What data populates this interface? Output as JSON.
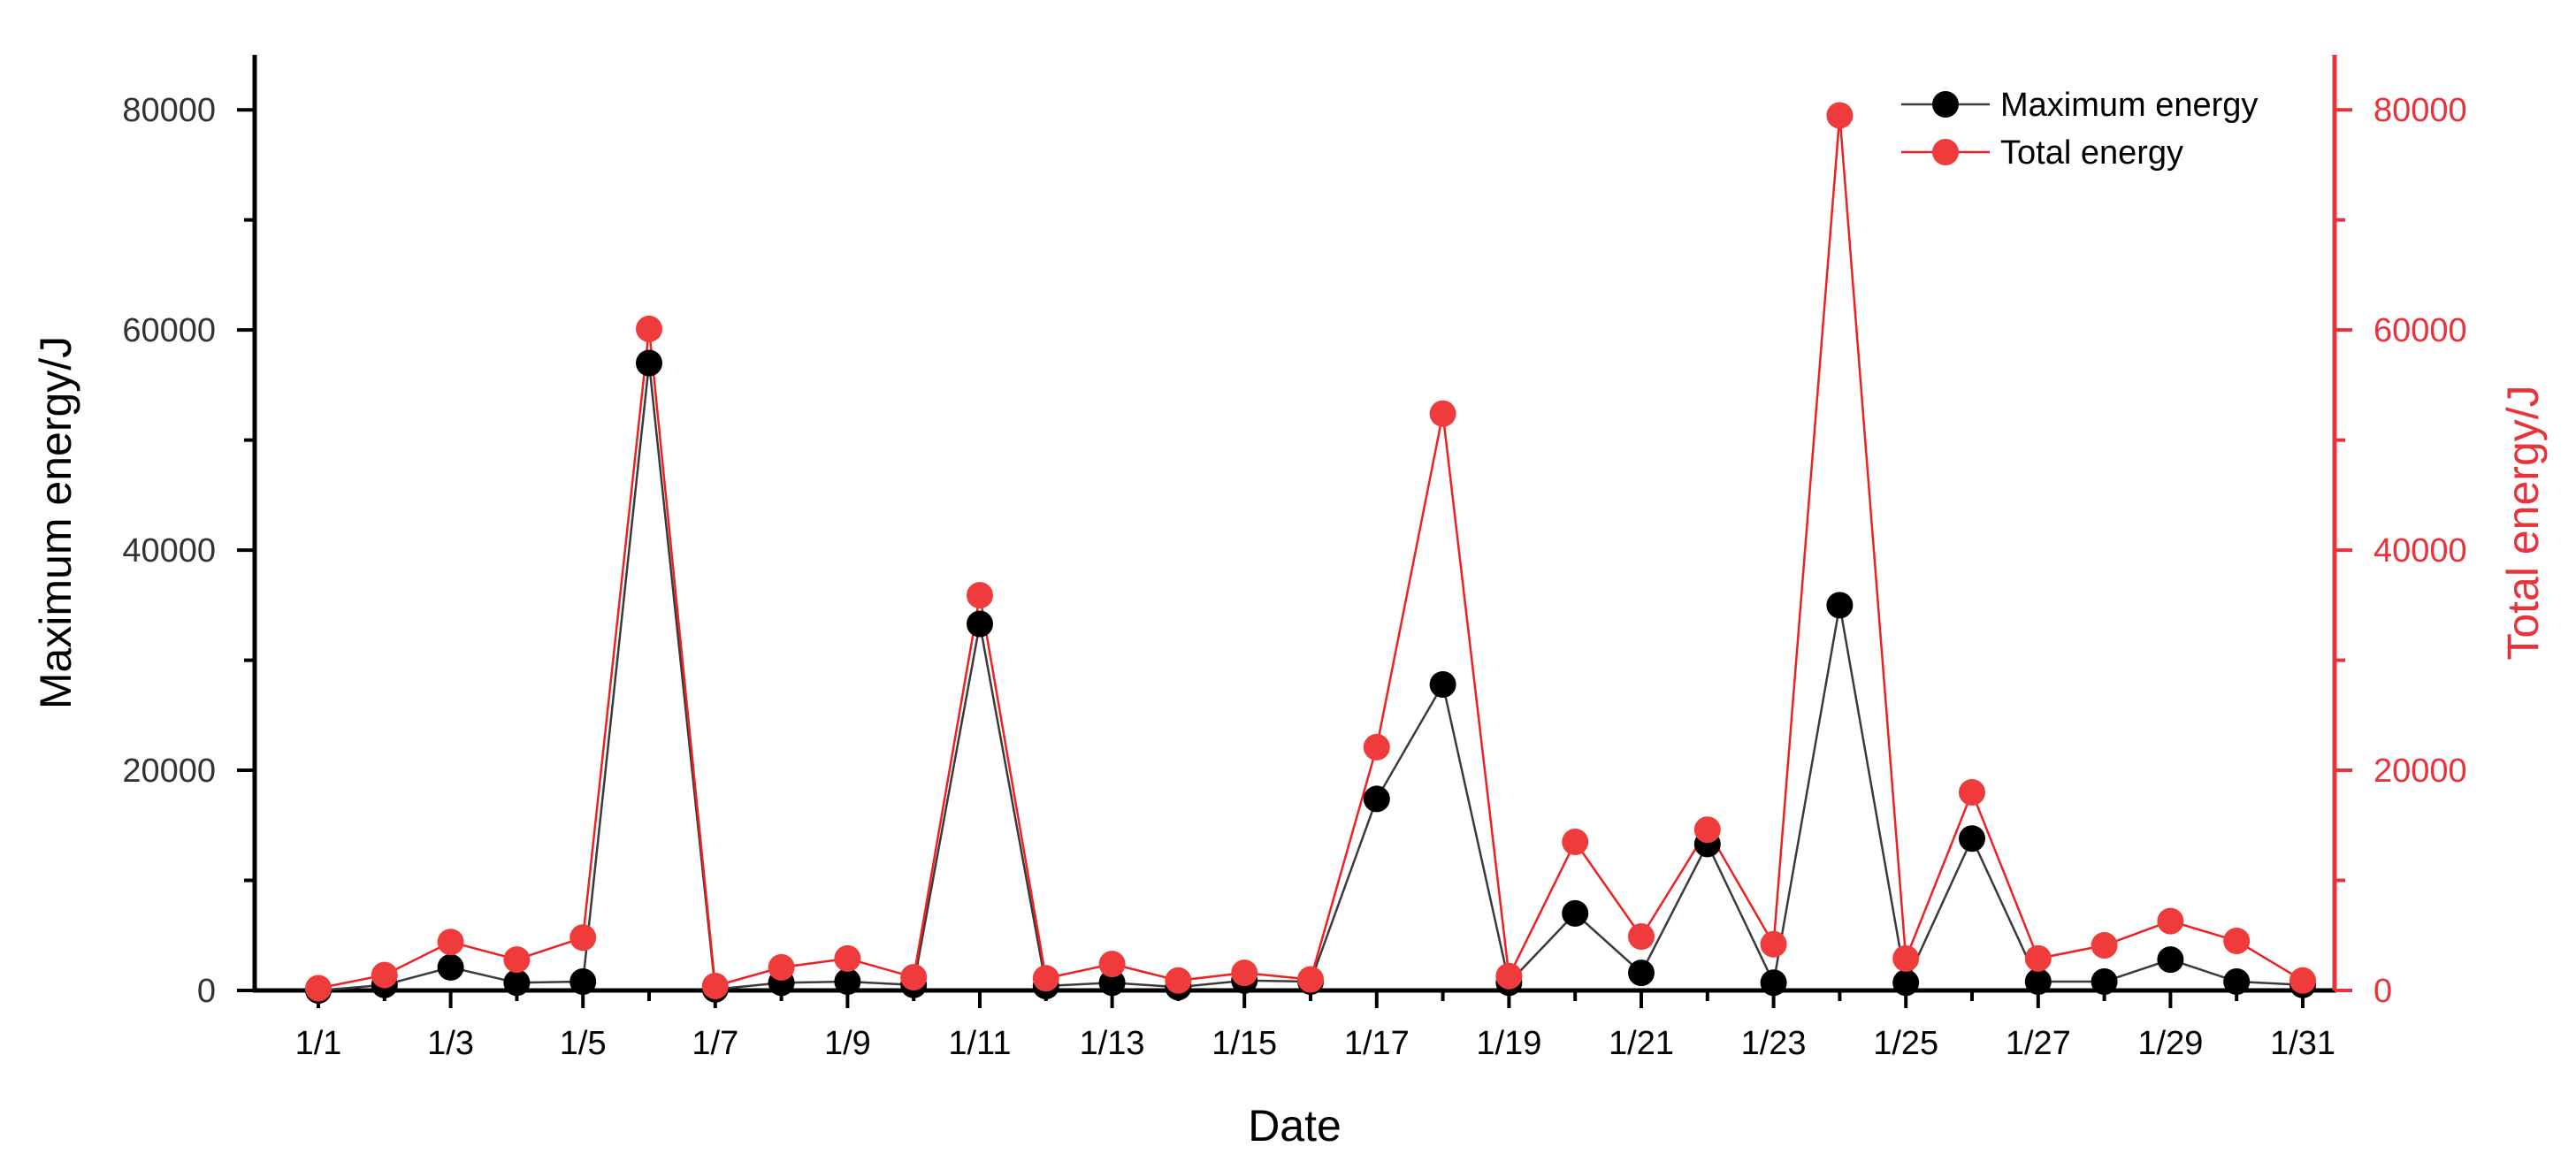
{
  "chart_data": {
    "type": "line",
    "xlabel": "Date",
    "ylabel_left": "Maximum energy/J",
    "ylabel_right": "Total energy/J",
    "x": [
      "1/1",
      "1/2",
      "1/3",
      "1/4",
      "1/5",
      "1/6",
      "1/7",
      "1/8",
      "1/9",
      "1/10",
      "1/11",
      "1/12",
      "1/13",
      "1/14",
      "1/15",
      "1/16",
      "1/17",
      "1/18",
      "1/19",
      "1/20",
      "1/21",
      "1/22",
      "1/23",
      "1/24",
      "1/25",
      "1/26",
      "1/27",
      "1/28",
      "1/29",
      "1/30",
      "1/31"
    ],
    "x_tick_labels": [
      "1/1",
      "1/3",
      "1/5",
      "1/7",
      "1/9",
      "1/11",
      "1/13",
      "1/15",
      "1/17",
      "1/19",
      "1/21",
      "1/23",
      "1/25",
      "1/27",
      "1/29",
      "1/31"
    ],
    "ylim_left": [
      0,
      85000
    ],
    "ylim_right": [
      0,
      85000
    ],
    "y_ticks": [
      "0",
      "20000",
      "40000",
      "60000",
      "80000"
    ],
    "legend_position": "top-right",
    "grid": false,
    "series": [
      {
        "name": "Maximum energy",
        "axis": "left",
        "color": "#000000",
        "line_color": "#3a3a3a",
        "values": [
          0,
          500,
          2100,
          700,
          800,
          57000,
          100,
          700,
          800,
          500,
          33300,
          400,
          700,
          300,
          900,
          800,
          17400,
          27800,
          700,
          7000,
          1600,
          13300,
          700,
          35000,
          700,
          13800,
          800,
          800,
          2800,
          800,
          500
        ]
      },
      {
        "name": "Total energy",
        "axis": "right",
        "color": "#ef3b3b",
        "line_color": "#ef2020",
        "values": [
          200,
          1400,
          4400,
          2800,
          4800,
          60100,
          400,
          2100,
          2900,
          1200,
          35900,
          1100,
          2400,
          900,
          1600,
          1000,
          22100,
          52400,
          1300,
          13500,
          4900,
          14600,
          4200,
          79500,
          2900,
          18000,
          2900,
          4100,
          6300,
          4500,
          900
        ]
      }
    ]
  },
  "colors": {
    "left_axis": "#000000",
    "right_axis": "#e8323c",
    "max_marker": "#000000",
    "total_marker": "#ef3b3b"
  }
}
